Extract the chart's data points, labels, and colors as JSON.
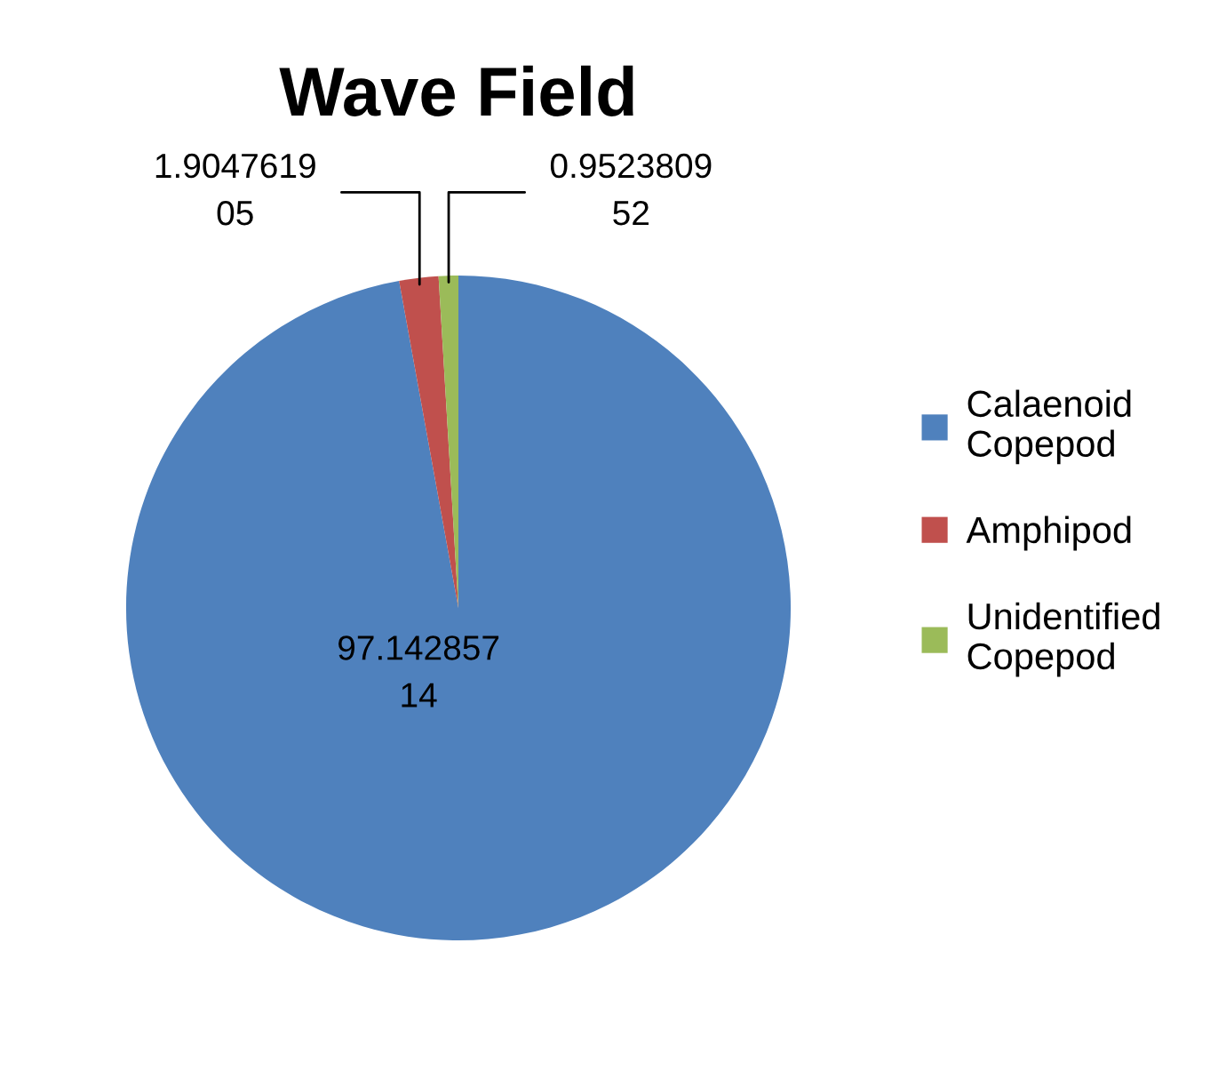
{
  "chart_data": {
    "type": "pie",
    "title": "Wave Field",
    "categories": [
      "Calaenoid Copepod",
      "Amphipod",
      "Unidentified Copepod"
    ],
    "values": [
      97.14285714,
      1.904761905,
      0.952380952
    ],
    "value_labels": [
      "97.14285714",
      "1.904761905",
      "0.952380952"
    ],
    "colors": [
      "#4f81bd",
      "#c0504d",
      "#9bbb59"
    ],
    "legend": "right"
  }
}
